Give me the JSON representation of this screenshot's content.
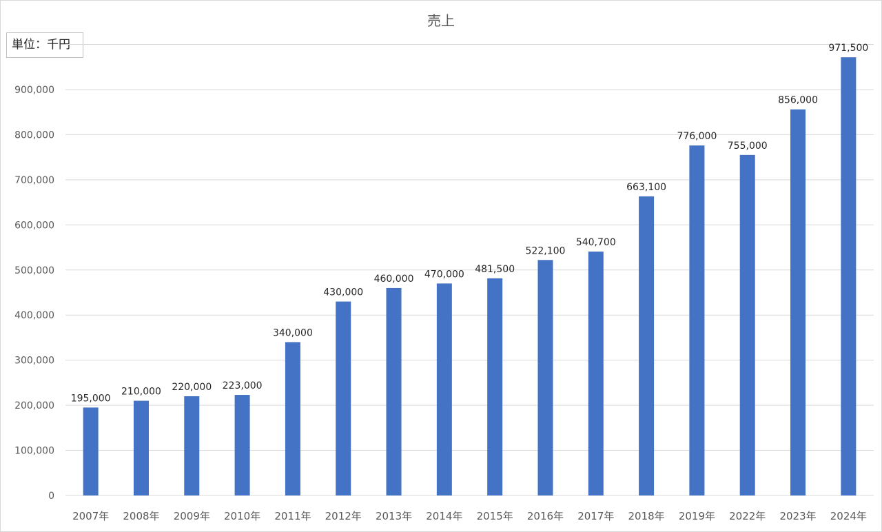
{
  "chart_data": {
    "type": "bar",
    "title": "売上",
    "unit_label": "単位：千円",
    "categories": [
      "2007年",
      "2008年",
      "2009年",
      "2010年",
      "2011年",
      "2012年",
      "2013年",
      "2014年",
      "2015年",
      "2016年",
      "2017年",
      "2018年",
      "2019年",
      "2022年",
      "2023年",
      "2024年"
    ],
    "values": [
      195000,
      210000,
      220000,
      223000,
      340000,
      430000,
      460000,
      470000,
      481500,
      522100,
      540700,
      663100,
      776000,
      755000,
      856000,
      971500
    ],
    "value_labels": [
      "195,000",
      "210,000",
      "220,000",
      "223,000",
      "340,000",
      "430,000",
      "460,000",
      "470,000",
      "481,500",
      "522,100",
      "540,700",
      "663,100",
      "776,000",
      "755,000",
      "856,000",
      "971,500"
    ],
    "yticks": [
      "0",
      "100,000",
      "200,000",
      "300,000",
      "400,000",
      "500,000",
      "600,000",
      "700,000",
      "800,000",
      "900,000"
    ],
    "ylim": [
      0,
      1000000
    ],
    "grid": true,
    "bar_color": "#4472c4",
    "grid_color": "#d9d9d9"
  }
}
